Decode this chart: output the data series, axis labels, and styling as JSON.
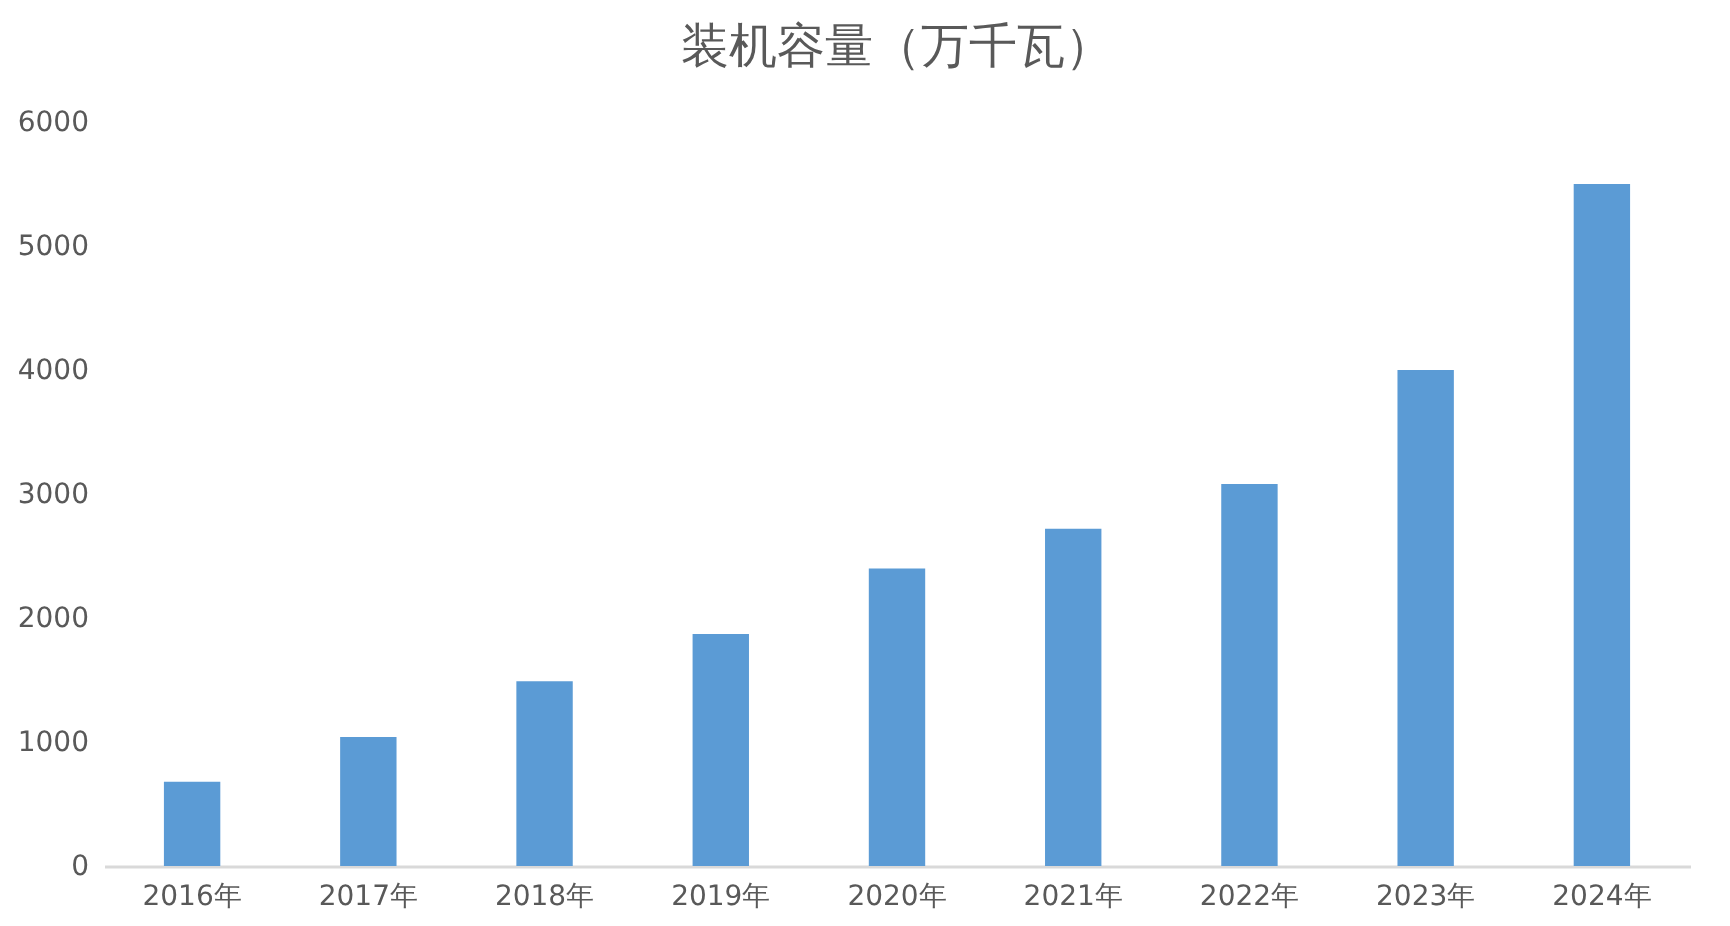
{
  "chart_data": {
    "type": "bar",
    "title": "装机容量（万千瓦）",
    "categories": [
      "2016年",
      "2017年",
      "2018年",
      "2019年",
      "2020年",
      "2021年",
      "2022年",
      "2023年",
      "2024年"
    ],
    "values": [
      680,
      1040,
      1490,
      1870,
      2400,
      2720,
      3080,
      4000,
      5500
    ],
    "color": "#5b9bd5",
    "ylim": [
      0,
      6000
    ],
    "yticks": [
      0,
      1000,
      2000,
      3000,
      4000,
      5000,
      6000
    ]
  }
}
